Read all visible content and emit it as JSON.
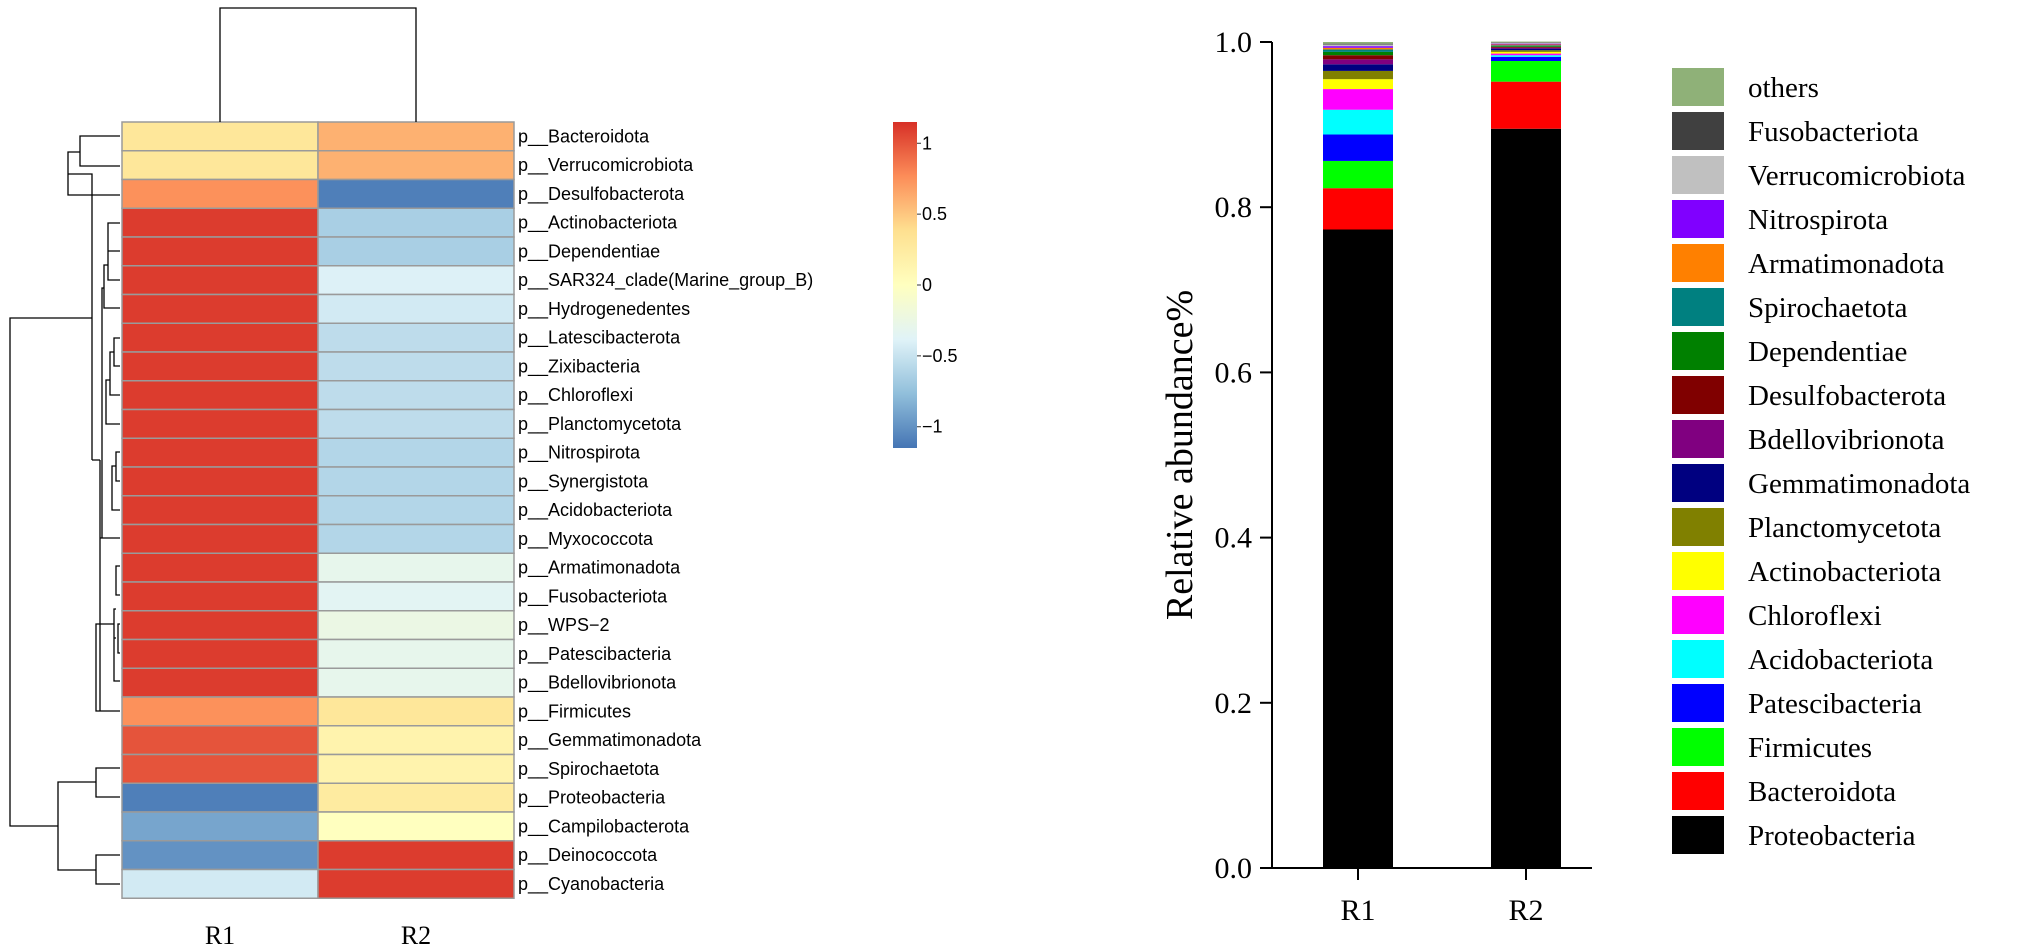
{
  "chart_data": [
    {
      "type": "heatmap",
      "columns": [
        "R1",
        "R2"
      ],
      "rows": [
        {
          "label": "p__Bacteroidota",
          "values": [
            0.3,
            0.6
          ]
        },
        {
          "label": "p__Verrucomicrobiota",
          "values": [
            0.3,
            0.6
          ]
        },
        {
          "label": "p__Desulfobacterota",
          "values": [
            0.75,
            -1.1
          ]
        },
        {
          "label": "p__Actinobacteriota",
          "values": [
            1.1,
            -0.65
          ]
        },
        {
          "label": "p__Dependentiae",
          "values": [
            1.1,
            -0.65
          ]
        },
        {
          "label": "p__SAR324_clade(Marine_group_B)",
          "values": [
            1.1,
            -0.4
          ]
        },
        {
          "label": "p__Hydrogenedentes",
          "values": [
            1.1,
            -0.45
          ]
        },
        {
          "label": "p__Latescibacterota",
          "values": [
            1.1,
            -0.55
          ]
        },
        {
          "label": "p__Zixibacteria",
          "values": [
            1.1,
            -0.55
          ]
        },
        {
          "label": "p__Chloroflexi",
          "values": [
            1.1,
            -0.55
          ]
        },
        {
          "label": "p__Planctomycetota",
          "values": [
            1.1,
            -0.55
          ]
        },
        {
          "label": "p__Nitrospirota",
          "values": [
            1.1,
            -0.6
          ]
        },
        {
          "label": "p__Synergistota",
          "values": [
            1.1,
            -0.6
          ]
        },
        {
          "label": "p__Acidobacteriota",
          "values": [
            1.1,
            -0.6
          ]
        },
        {
          "label": "p__Myxococcota",
          "values": [
            1.1,
            -0.6
          ]
        },
        {
          "label": "p__Armatimonadota",
          "values": [
            1.1,
            -0.3
          ]
        },
        {
          "label": "p__Fusobacteriota",
          "values": [
            1.1,
            -0.35
          ]
        },
        {
          "label": "p__WPS−2",
          "values": [
            1.1,
            -0.25
          ]
        },
        {
          "label": "p__Patescibacteria",
          "values": [
            1.1,
            -0.3
          ]
        },
        {
          "label": "p__Bdellovibrionota",
          "values": [
            1.1,
            -0.3
          ]
        },
        {
          "label": "p__Firmicutes",
          "values": [
            0.75,
            0.3
          ]
        },
        {
          "label": "p__Gemmatimonadota",
          "values": [
            1.0,
            0.15
          ]
        },
        {
          "label": "p__Spirochaetota",
          "values": [
            1.0,
            0.15
          ]
        },
        {
          "label": "p__Proteobacteria",
          "values": [
            -1.1,
            0.25
          ]
        },
        {
          "label": "p__Campilobacterota",
          "values": [
            -0.9,
            0.0
          ]
        },
        {
          "label": "p__Deinococcota",
          "values": [
            -1.0,
            1.1
          ]
        },
        {
          "label": "p__Cyanobacteria",
          "values": [
            -0.45,
            1.1
          ]
        }
      ],
      "colorbar": {
        "ticks": [
          1,
          0.5,
          0,
          -0.5,
          -1
        ],
        "tick_labels": [
          "1",
          "0.5",
          "0",
          "−0.5",
          "−1"
        ],
        "range": [
          -1.15,
          1.15
        ],
        "colors": [
          "#4575b4",
          "#91bfdb",
          "#e0f3f8",
          "#ffffbf",
          "#fee090",
          "#fc8d59",
          "#d73027"
        ]
      }
    },
    {
      "type": "bar",
      "stacked": true,
      "ylabel": "Relative abundance%",
      "ylim": [
        0,
        1
      ],
      "yticks": [
        0.0,
        0.2,
        0.4,
        0.6,
        0.8,
        1.0
      ],
      "ytick_labels": [
        "0.0",
        "0.2",
        "0.4",
        "0.6",
        "0.8",
        "1.0"
      ],
      "categories": [
        "R1",
        "R2"
      ],
      "series": [
        {
          "name": "Proteobacteria",
          "color": "#000000",
          "values": [
            0.773,
            0.895
          ]
        },
        {
          "name": "Bacteroidota",
          "color": "#ff0000",
          "values": [
            0.05,
            0.057
          ]
        },
        {
          "name": "Firmicutes",
          "color": "#00ff00",
          "values": [
            0.033,
            0.025
          ]
        },
        {
          "name": "Patescibacteria",
          "color": "#0000ff",
          "values": [
            0.032,
            0.005
          ]
        },
        {
          "name": "Acidobacteriota",
          "color": "#00ffff",
          "values": [
            0.03,
            0.002
          ]
        },
        {
          "name": "Chloroflexi",
          "color": "#ff00ff",
          "values": [
            0.025,
            0.002
          ]
        },
        {
          "name": "Actinobacteriota",
          "color": "#ffff00",
          "values": [
            0.012,
            0.002
          ]
        },
        {
          "name": "Planctomycetota",
          "color": "#808000",
          "values": [
            0.01,
            0.002
          ]
        },
        {
          "name": "Gemmatimonadota",
          "color": "#000080",
          "values": [
            0.008,
            0.002
          ]
        },
        {
          "name": "Bdellovibrionota",
          "color": "#800080",
          "values": [
            0.006,
            0.001
          ]
        },
        {
          "name": "Desulfobacterota",
          "color": "#800000",
          "values": [
            0.005,
            0.001
          ]
        },
        {
          "name": "Dependentiae",
          "color": "#008000",
          "values": [
            0.004,
            0.001
          ]
        },
        {
          "name": "Spirochaetota",
          "color": "#008080",
          "values": [
            0.003,
            0.001
          ]
        },
        {
          "name": "Armatimonadota",
          "color": "#ff8000",
          "values": [
            0.002,
            0.001
          ]
        },
        {
          "name": "Nitrospirota",
          "color": "#8000ff",
          "values": [
            0.002,
            0.001
          ]
        },
        {
          "name": "Verrucomicrobiota",
          "color": "#c0c0c0",
          "values": [
            0.002,
            0.001
          ]
        },
        {
          "name": "Fusobacteriota",
          "color": "#404040",
          "values": [
            0.001,
            0.0005
          ]
        },
        {
          "name": "others",
          "color": "#8fb178",
          "values": [
            0.002,
            0.001
          ]
        }
      ],
      "legend_order": [
        "others",
        "Fusobacteriota",
        "Verrucomicrobiota",
        "Nitrospirota",
        "Armatimonadota",
        "Spirochaetota",
        "Dependentiae",
        "Desulfobacterota",
        "Bdellovibrionota",
        "Gemmatimonadota",
        "Planctomycetota",
        "Actinobacteriota",
        "Chloroflexi",
        "Acidobacteriota",
        "Patescibacteria",
        "Firmicutes",
        "Bacteroidota",
        "Proteobacteria"
      ],
      "legend_placement": "right",
      "grid": false
    }
  ]
}
